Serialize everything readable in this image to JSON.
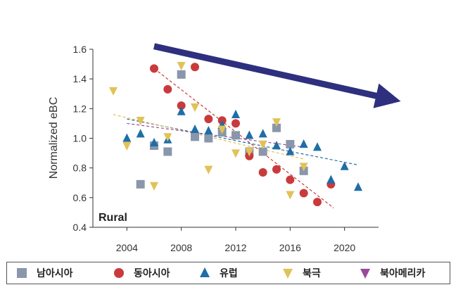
{
  "chart_data": {
    "type": "scatter",
    "ylabel": "Normalized eBC",
    "xlabel": "",
    "annotation": "Rural",
    "xlim": [
      2001.5,
      2022.5
    ],
    "ylim": [
      0.4,
      1.6
    ],
    "x_ticks": [
      2004,
      2008,
      2012,
      2016,
      2020
    ],
    "y_ticks": [
      0.4,
      0.6,
      0.8,
      1.0,
      1.2,
      1.4,
      1.6
    ],
    "y_tick_labels": [
      "0.4",
      "0.6",
      "0.8",
      "1.0",
      "1.2",
      "1.4",
      "1.6"
    ],
    "x_tick_labels": [
      "2004",
      "2008",
      "2012",
      "2016",
      "2020"
    ],
    "arrow": {
      "from": [
        2006,
        1.62
      ],
      "to": [
        2024,
        1.26
      ],
      "color": "#2e2f7e"
    },
    "series": [
      {
        "name": "남아시아",
        "marker": "square",
        "color": "#8a96ab",
        "points": [
          [
            2005,
            0.69
          ],
          [
            2006,
            0.95
          ],
          [
            2007,
            0.91
          ],
          [
            2008,
            1.43
          ],
          [
            2009,
            1.01
          ],
          [
            2010,
            1.0
          ],
          [
            2011,
            1.04
          ],
          [
            2012,
            1.02
          ],
          [
            2013,
            0.91
          ],
          [
            2014,
            0.91
          ],
          [
            2015,
            1.07
          ],
          [
            2016,
            0.96
          ],
          [
            2017,
            0.78
          ]
        ]
      },
      {
        "name": "동아시아",
        "marker": "circle",
        "color": "#c93a3c",
        "points": [
          [
            2006,
            1.47
          ],
          [
            2007,
            1.33
          ],
          [
            2008,
            1.22
          ],
          [
            2009,
            1.48
          ],
          [
            2010,
            1.13
          ],
          [
            2011,
            1.12
          ],
          [
            2012,
            1.1
          ],
          [
            2013,
            0.88
          ],
          [
            2014,
            0.77
          ],
          [
            2015,
            0.79
          ],
          [
            2016,
            0.72
          ],
          [
            2017,
            0.63
          ],
          [
            2018,
            0.57
          ],
          [
            2019,
            0.69
          ]
        ],
        "trend": [
          [
            2006,
            1.47
          ],
          [
            2019.2,
            0.53
          ]
        ]
      },
      {
        "name": "유럽",
        "marker": "triangle-up",
        "color": "#1f6ea6",
        "points": [
          [
            2004,
            1.0
          ],
          [
            2005,
            1.03
          ],
          [
            2006,
            0.97
          ],
          [
            2007,
            0.99
          ],
          [
            2008,
            1.18
          ],
          [
            2009,
            1.06
          ],
          [
            2010,
            1.05
          ],
          [
            2011,
            1.09
          ],
          [
            2012,
            1.16
          ],
          [
            2013,
            1.02
          ],
          [
            2014,
            1.03
          ],
          [
            2015,
            0.95
          ],
          [
            2016,
            0.91
          ],
          [
            2017,
            0.96
          ],
          [
            2018,
            0.94
          ],
          [
            2019,
            0.72
          ],
          [
            2020,
            0.81
          ],
          [
            2021,
            0.67
          ]
        ],
        "trend": [
          [
            2004,
            1.13
          ],
          [
            2021,
            0.82
          ]
        ]
      },
      {
        "name": "북극",
        "marker": "triangle-down",
        "color": "#e2c257",
        "points": [
          [
            2003,
            1.32
          ],
          [
            2004,
            0.95
          ],
          [
            2005,
            1.12
          ],
          [
            2006,
            0.68
          ],
          [
            2007,
            1.01
          ],
          [
            2008,
            1.49
          ],
          [
            2009,
            1.21
          ],
          [
            2010,
            0.79
          ],
          [
            2011,
            1.06
          ],
          [
            2012,
            0.9
          ],
          [
            2013,
            0.91
          ],
          [
            2014,
            0.96
          ],
          [
            2015,
            1.11
          ],
          [
            2016,
            0.62
          ],
          [
            2017,
            0.81
          ]
        ],
        "trend": [
          [
            2003,
            1.16
          ],
          [
            2017,
            0.86
          ]
        ]
      },
      {
        "name": "북아메리카",
        "marker": "triangle-down",
        "color": "#9a4a9a",
        "points": [],
        "trend": [
          [
            2004,
            1.1
          ],
          [
            2017,
            0.94
          ]
        ]
      }
    ]
  }
}
